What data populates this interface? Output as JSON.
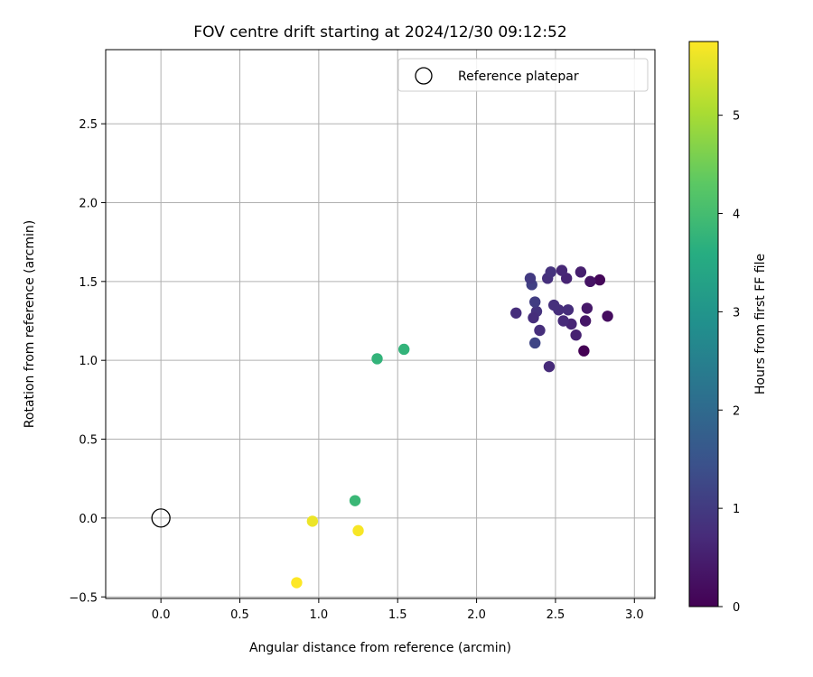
{
  "chart_data": {
    "type": "scatter",
    "title": "FOV centre drift starting at 2024/12/30 09:12:52",
    "xlabel": "Angular distance from reference (arcmin)",
    "ylabel": "Rotation from reference (arcmin)",
    "xlim": [
      -0.35,
      3.13
    ],
    "ylim": [
      -0.51,
      2.97
    ],
    "xticks": [
      0.0,
      0.5,
      1.0,
      1.5,
      2.0,
      2.5,
      3.0
    ],
    "xtick_labels": [
      "0.0",
      "0.5",
      "1.0",
      "1.5",
      "2.0",
      "2.5",
      "3.0"
    ],
    "yticks": [
      -0.5,
      0.0,
      0.5,
      1.0,
      1.5,
      2.0,
      2.5
    ],
    "ytick_labels": [
      "−0.5",
      "0.0",
      "0.5",
      "1.0",
      "1.5",
      "2.0",
      "2.5"
    ],
    "grid": true,
    "legend": {
      "position": "top-right",
      "entries": [
        {
          "label": "Reference platepar",
          "marker": "open-circle",
          "x": 0.0,
          "y": 0.0
        }
      ]
    },
    "colorbar": {
      "label": "Hours from first FF file",
      "range": [
        0,
        5.75
      ],
      "ticks": [
        0,
        1,
        2,
        3,
        4,
        5
      ],
      "tick_labels": [
        "0",
        "1",
        "2",
        "3",
        "4",
        "5"
      ],
      "colormap": "viridis"
    },
    "points": [
      {
        "x": 2.68,
        "y": 1.06,
        "h": 0.0
      },
      {
        "x": 2.78,
        "y": 1.51,
        "h": 0.1
      },
      {
        "x": 2.83,
        "y": 1.28,
        "h": 0.2
      },
      {
        "x": 2.72,
        "y": 1.5,
        "h": 0.3
      },
      {
        "x": 2.69,
        "y": 1.25,
        "h": 0.35
      },
      {
        "x": 2.7,
        "y": 1.33,
        "h": 0.4
      },
      {
        "x": 2.66,
        "y": 1.56,
        "h": 0.5
      },
      {
        "x": 2.63,
        "y": 1.16,
        "h": 0.55
      },
      {
        "x": 2.6,
        "y": 1.23,
        "h": 0.6
      },
      {
        "x": 2.57,
        "y": 1.52,
        "h": 0.6
      },
      {
        "x": 2.54,
        "y": 1.57,
        "h": 0.65
      },
      {
        "x": 2.55,
        "y": 1.25,
        "h": 0.7
      },
      {
        "x": 2.58,
        "y": 1.32,
        "h": 0.75
      },
      {
        "x": 2.52,
        "y": 1.32,
        "h": 0.75
      },
      {
        "x": 2.49,
        "y": 1.35,
        "h": 0.8
      },
      {
        "x": 2.45,
        "y": 1.52,
        "h": 0.8
      },
      {
        "x": 2.47,
        "y": 1.56,
        "h": 0.85
      },
      {
        "x": 2.46,
        "y": 0.96,
        "h": 0.7
      },
      {
        "x": 2.4,
        "y": 1.19,
        "h": 0.75
      },
      {
        "x": 2.38,
        "y": 1.31,
        "h": 0.85
      },
      {
        "x": 2.25,
        "y": 1.3,
        "h": 0.75
      },
      {
        "x": 2.36,
        "y": 1.27,
        "h": 0.75
      },
      {
        "x": 2.37,
        "y": 1.37,
        "h": 1.05
      },
      {
        "x": 2.35,
        "y": 1.48,
        "h": 1.1
      },
      {
        "x": 2.34,
        "y": 1.52,
        "h": 1.0
      },
      {
        "x": 2.37,
        "y": 1.11,
        "h": 1.2
      },
      {
        "x": 1.37,
        "y": 1.01,
        "h": 3.75
      },
      {
        "x": 1.54,
        "y": 1.07,
        "h": 3.75
      },
      {
        "x": 1.23,
        "y": 0.11,
        "h": 3.85
      },
      {
        "x": 0.96,
        "y": -0.02,
        "h": 5.6
      },
      {
        "x": 1.25,
        "y": -0.08,
        "h": 5.7
      },
      {
        "x": 0.86,
        "y": -0.41,
        "h": 5.75
      }
    ]
  }
}
